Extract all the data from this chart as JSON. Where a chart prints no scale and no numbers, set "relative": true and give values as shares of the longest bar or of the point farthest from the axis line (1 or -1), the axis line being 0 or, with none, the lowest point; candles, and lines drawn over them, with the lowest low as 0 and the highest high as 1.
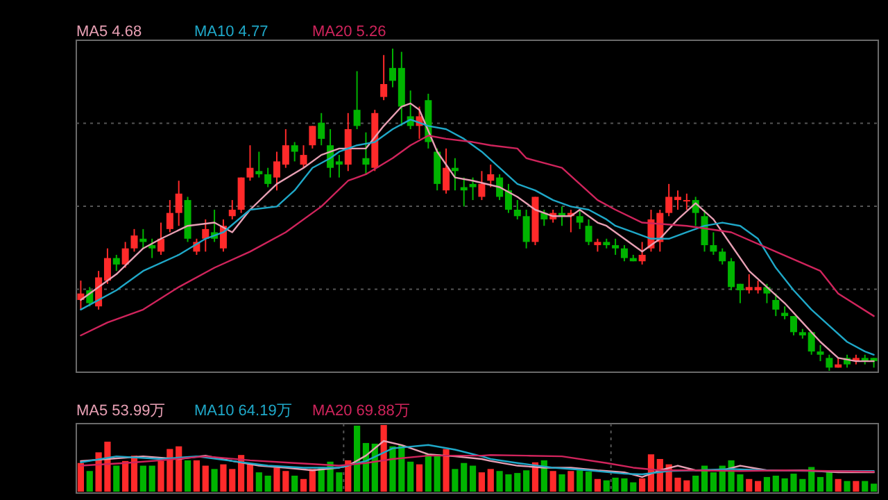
{
  "chart_data": [
    {
      "type": "candlestick",
      "relative": true,
      "grid": "y",
      "legend": "top left",
      "categories": [
        null,
        null,
        null,
        null,
        null,
        null,
        null,
        null,
        null,
        null,
        null,
        null,
        null,
        null,
        null,
        null,
        null,
        null,
        null,
        null,
        null,
        null,
        null,
        null,
        null,
        null,
        null,
        null,
        null,
        null,
        null,
        null,
        null,
        null,
        null,
        null,
        null,
        null,
        null,
        null,
        null,
        null,
        null,
        null,
        null,
        null,
        null,
        null,
        null,
        null,
        null,
        null,
        null,
        null,
        null,
        null,
        null,
        null,
        null,
        null,
        null,
        null,
        null,
        null,
        null,
        null,
        null,
        null,
        null,
        null,
        null,
        null,
        null,
        null,
        null,
        null,
        null,
        null,
        null,
        null,
        null,
        null,
        null,
        null,
        null,
        null,
        null,
        null,
        null,
        null
      ],
      "ohlc": [
        [
          0.22,
          0.28,
          0.19,
          0.24
        ],
        [
          0.25,
          0.26,
          0.2,
          0.21
        ],
        [
          0.2,
          0.31,
          0.19,
          0.29
        ],
        [
          0.28,
          0.38,
          0.27,
          0.35
        ],
        [
          0.35,
          0.36,
          0.31,
          0.33
        ],
        [
          0.33,
          0.4,
          0.32,
          0.38
        ],
        [
          0.38,
          0.44,
          0.37,
          0.42
        ],
        [
          0.41,
          0.44,
          0.38,
          0.4
        ],
        [
          0.39,
          0.41,
          0.35,
          0.38
        ],
        [
          0.37,
          0.46,
          0.36,
          0.41
        ],
        [
          0.44,
          0.53,
          0.43,
          0.49
        ],
        [
          0.49,
          0.59,
          0.45,
          0.55
        ],
        [
          0.53,
          0.54,
          0.4,
          0.41
        ],
        [
          0.37,
          0.41,
          0.36,
          0.4
        ],
        [
          0.41,
          0.47,
          0.37,
          0.44
        ],
        [
          0.43,
          0.5,
          0.4,
          0.41
        ],
        [
          0.38,
          0.47,
          0.37,
          0.45
        ],
        [
          0.48,
          0.53,
          0.47,
          0.5
        ],
        [
          0.5,
          0.6,
          0.49,
          0.6
        ],
        [
          0.6,
          0.7,
          0.59,
          0.63
        ],
        [
          0.62,
          0.68,
          0.6,
          0.61
        ],
        [
          0.61,
          0.63,
          0.57,
          0.58
        ],
        [
          0.6,
          0.68,
          0.56,
          0.65
        ],
        [
          0.64,
          0.75,
          0.63,
          0.7
        ],
        [
          0.7,
          0.71,
          0.65,
          0.68
        ],
        [
          0.64,
          0.7,
          0.63,
          0.67
        ],
        [
          0.7,
          0.76,
          0.69,
          0.76
        ],
        [
          0.77,
          0.8,
          0.7,
          0.72
        ],
        [
          0.7,
          0.75,
          0.6,
          0.63
        ],
        [
          0.65,
          0.67,
          0.6,
          0.64
        ],
        [
          0.64,
          0.8,
          0.62,
          0.75
        ],
        [
          0.81,
          0.93,
          0.75,
          0.76
        ],
        [
          0.66,
          0.74,
          0.61,
          0.64
        ],
        [
          0.63,
          0.81,
          0.62,
          0.8
        ],
        [
          0.85,
          0.98,
          0.84,
          0.89
        ],
        [
          0.94,
          1,
          0.88,
          0.9
        ],
        [
          0.94,
          0.99,
          0.76,
          0.82
        ],
        [
          0.79,
          0.87,
          0.75,
          0.76
        ],
        [
          0.76,
          0.82,
          0.72,
          0.79
        ],
        [
          0.84,
          0.86,
          0.69,
          0.71
        ],
        [
          0.68,
          0.69,
          0.56,
          0.58
        ],
        [
          0.56,
          0.69,
          0.55,
          0.63
        ],
        [
          0.63,
          0.66,
          0.56,
          0.62
        ],
        [
          0.57,
          0.6,
          0.51,
          0.56
        ],
        [
          0.58,
          0.6,
          0.53,
          0.57
        ],
        [
          0.54,
          0.62,
          0.53,
          0.58
        ],
        [
          0.59,
          0.64,
          0.57,
          0.61
        ],
        [
          0.6,
          0.61,
          0.53,
          0.54
        ],
        [
          0.56,
          0.58,
          0.49,
          0.5
        ],
        [
          0.5,
          0.53,
          0.47,
          0.48
        ],
        [
          0.48,
          0.5,
          0.38,
          0.4
        ],
        [
          0.4,
          0.54,
          0.39,
          0.54
        ],
        [
          0.49,
          0.5,
          0.45,
          0.47
        ],
        [
          0.47,
          0.5,
          0.46,
          0.49
        ],
        [
          0.49,
          0.51,
          0.45,
          0.48
        ],
        [
          0.48,
          0.5,
          0.43,
          0.49
        ],
        [
          0.48,
          0.5,
          0.44,
          0.46
        ],
        [
          0.45,
          0.47,
          0.39,
          0.4
        ],
        [
          0.39,
          0.41,
          0.37,
          0.4
        ],
        [
          0.4,
          0.41,
          0.38,
          0.39
        ],
        [
          0.39,
          0.41,
          0.36,
          0.38
        ],
        [
          0.38,
          0.39,
          0.34,
          0.35
        ],
        [
          0.35,
          0.36,
          0.34,
          0.34
        ],
        [
          0.34,
          0.4,
          0.33,
          0.36
        ],
        [
          0.38,
          0.5,
          0.37,
          0.47
        ],
        [
          0.4,
          0.5,
          0.37,
          0.49
        ],
        [
          0.49,
          0.58,
          0.48,
          0.54
        ],
        [
          0.53,
          0.56,
          0.5,
          0.54
        ],
        [
          0.53,
          0.55,
          0.5,
          0.53
        ],
        [
          0.53,
          0.54,
          0.45,
          0.49
        ],
        [
          0.48,
          0.5,
          0.37,
          0.39
        ],
        [
          0.39,
          0.43,
          0.36,
          0.37
        ],
        [
          0.37,
          0.38,
          0.33,
          0.34
        ],
        [
          0.34,
          0.35,
          0.25,
          0.26
        ],
        [
          0.27,
          0.27,
          0.21,
          0.25
        ],
        [
          0.25,
          0.3,
          0.24,
          0.26
        ],
        [
          0.25,
          0.28,
          0.24,
          0.26
        ],
        [
          0.26,
          0.27,
          0.21,
          0.24
        ],
        [
          0.22,
          0.24,
          0.17,
          0.19
        ],
        [
          0.18,
          0.2,
          0.16,
          0.17
        ],
        [
          0.17,
          0.17,
          0.11,
          0.12
        ],
        [
          0.12,
          0.13,
          0.1,
          0.11
        ],
        [
          0.12,
          0.12,
          0.05,
          0.06
        ],
        [
          0.06,
          0.08,
          0.03,
          0.05
        ],
        [
          0.04,
          0.05,
          0,
          0.01
        ],
        [
          0.01,
          0.04,
          0.01,
          0.02
        ],
        [
          0.04,
          0.05,
          0.01,
          0.02
        ],
        [
          0.03,
          0.05,
          0.02,
          0.04
        ],
        [
          0.04,
          0.05,
          0.02,
          0.03
        ],
        [
          0.04,
          0.04,
          0.01,
          0.03
        ]
      ],
      "series": [
        {
          "type": "line",
          "name": "MA5 4.68",
          "color": "#e8a0b4",
          "values": [
            0.22,
            null,
            null,
            null,
            0.3,
            null,
            null,
            0.38,
            null,
            0.41,
            null,
            null,
            0.45,
            null,
            null,
            0.46,
            null,
            0.43,
            null,
            0.5,
            null,
            null,
            0.58,
            null,
            null,
            0.63,
            null,
            0.67,
            null,
            0.69,
            0.69,
            null,
            0.69,
            null,
            0.76,
            null,
            0.82,
            0.83,
            0.81,
            null,
            0.68,
            null,
            0.6,
            null,
            0.59,
            null,
            null,
            0.57,
            null,
            0.54,
            null,
            0.5,
            null,
            0.48,
            null,
            0.48,
            0.5,
            null,
            0.46,
            0.45,
            null,
            0.41,
            null,
            0.37,
            null,
            0.41,
            null,
            0.47,
            null,
            0.52,
            null,
            0.47,
            null,
            0.39,
            null,
            0.31,
            null,
            0.26,
            null,
            0.21,
            null,
            0.15,
            null,
            0.09,
            null,
            0.04,
            null,
            0.03,
            null,
            0.03
          ]
        },
        {
          "type": "line",
          "name": "MA10 4.77",
          "color": "#1fa8c8",
          "values": [
            0.19,
            null,
            null,
            null,
            0.25,
            null,
            null,
            0.31,
            null,
            null,
            null,
            0.36,
            null,
            null,
            0.41,
            null,
            0.43,
            null,
            null,
            0.5,
            null,
            null,
            0.51,
            null,
            0.56,
            null,
            0.63,
            null,
            0.66,
            0.68,
            null,
            0.7,
            null,
            0.71,
            null,
            0.75,
            null,
            0.78,
            null,
            0.76,
            null,
            0.75,
            null,
            0.72,
            null,
            0.68,
            null,
            0.63,
            null,
            0.58,
            null,
            0.56,
            null,
            0.53,
            null,
            0.51,
            null,
            0.5,
            null,
            0.47,
            0.45,
            null,
            0.43,
            null,
            0.41,
            null,
            0.41,
            null,
            0.43,
            null,
            0.45,
            null,
            0.46,
            null,
            0.45,
            null,
            0.41,
            null,
            0.32,
            null,
            0.25,
            null,
            0.19,
            null,
            0.14,
            null,
            0.09,
            null,
            0.06,
            0.05
          ]
        },
        {
          "type": "line",
          "name": "MA20 5.26",
          "color": "#d0245c",
          "values": [
            0.11,
            null,
            null,
            0.15,
            null,
            null,
            null,
            0.19,
            null,
            null,
            null,
            0.26,
            null,
            null,
            null,
            0.32,
            null,
            null,
            null,
            0.37,
            null,
            null,
            null,
            0.43,
            null,
            null,
            null,
            0.51,
            null,
            null,
            0.59,
            null,
            0.61,
            null,
            null,
            0.66,
            null,
            0.7,
            null,
            0.73,
            null,
            0.72,
            null,
            null,
            0.71,
            null,
            0.7,
            null,
            null,
            0.69,
            0.66,
            null,
            null,
            null,
            0.63,
            null,
            0.58,
            null,
            0.53,
            null,
            0.5,
            null,
            null,
            0.46,
            null,
            null,
            null,
            null,
            0.45,
            null,
            null,
            null,
            null,
            0.43,
            null,
            null,
            null,
            null,
            0.37,
            null,
            null,
            null,
            null,
            0.31,
            null,
            0.24,
            null,
            null,
            null,
            0.17
          ]
        }
      ]
    },
    {
      "type": "bar",
      "relative": true,
      "grid": "x",
      "legend": "top left",
      "categories": [
        null,
        null,
        null,
        null,
        null,
        null,
        null,
        null,
        null,
        null,
        null,
        null,
        null,
        null,
        null,
        null,
        null,
        null,
        null,
        null,
        null,
        null,
        null,
        null,
        null,
        null,
        null,
        null,
        null,
        null,
        null,
        null,
        null,
        null,
        null,
        null,
        null,
        null,
        null,
        null,
        null,
        null,
        null,
        null,
        null,
        null,
        null,
        null,
        null,
        null,
        null,
        null,
        null,
        null,
        null,
        null,
        null,
        null,
        null,
        null,
        null,
        null,
        null,
        null,
        null,
        null,
        null,
        null,
        null,
        null,
        null,
        null,
        null,
        null,
        null,
        null,
        null,
        null,
        null,
        null,
        null,
        null,
        null,
        null,
        null,
        null,
        null,
        null,
        null,
        null
      ],
      "series": [
        {
          "type": "bar",
          "values": [
            0.43,
            0.31,
            0.59,
            0.75,
            0.39,
            0.46,
            0.54,
            0.39,
            0.39,
            0.46,
            0.64,
            0.68,
            0.47,
            0.47,
            0.39,
            0.34,
            0.41,
            0.34,
            0.55,
            0.41,
            0.29,
            0.24,
            0.36,
            0.31,
            0.24,
            0.19,
            0.34,
            0.37,
            0.45,
            0.29,
            0.47,
            0.99,
            0.73,
            0.72,
            1,
            0.68,
            0.7,
            0.45,
            0.41,
            0.56,
            0.56,
            0.64,
            0.34,
            0.43,
            0.39,
            0.29,
            0.34,
            0.31,
            0.26,
            0.28,
            0.32,
            0.44,
            0.47,
            0.31,
            0.26,
            0.31,
            0.32,
            0.3,
            0.19,
            0.17,
            0.21,
            0.2,
            0.14,
            0.2,
            0.56,
            0.49,
            0.41,
            0.21,
            0.17,
            0.24,
            0.39,
            0.29,
            0.39,
            0.47,
            0.26,
            0.19,
            0.16,
            0.22,
            0.24,
            0.2,
            0.27,
            0.19,
            0.37,
            0.22,
            0.29,
            0.19,
            0.16,
            0.16,
            0.16,
            0.12
          ],
          "colors": [
            "#ff2a2a",
            "#00b400",
            "#ff2a2a",
            "#ff2a2a",
            "#00b400",
            "#ff2a2a",
            "#ff2a2a",
            "#00b400",
            "#00b400",
            "#ff2a2a",
            "#ff2a2a",
            "#ff2a2a",
            "#00b400",
            "#ff2a2a",
            "#ff2a2a",
            "#00b400",
            "#ff2a2a",
            "#ff2a2a",
            "#ff2a2a",
            "#ff2a2a",
            "#00b400",
            "#00b400",
            "#ff2a2a",
            "#ff2a2a",
            "#00b400",
            "#ff2a2a",
            "#ff2a2a",
            "#00b400",
            "#00b400",
            "#00b400",
            "#ff2a2a",
            "#00b400",
            "#00b400",
            "#00b400",
            "#ff2a2a",
            "#00b400",
            "#00b400",
            "#00b400",
            "#ff2a2a",
            "#00b400",
            "#00b400",
            "#ff2a2a",
            "#00b400",
            "#00b400",
            "#00b400",
            "#ff2a2a",
            "#ff2a2a",
            "#00b400",
            "#00b400",
            "#00b400",
            "#00b400",
            "#ff2a2a",
            "#00b400",
            "#ff2a2a",
            "#00b400",
            "#ff2a2a",
            "#00b400",
            "#00b400",
            "#ff2a2a",
            "#00b400",
            "#00b400",
            "#00b400",
            "#00b400",
            "#ff2a2a",
            "#ff2a2a",
            "#ff2a2a",
            "#ff2a2a",
            "#ff2a2a",
            "#ff2a2a",
            "#00b400",
            "#00b400",
            "#00b400",
            "#00b400",
            "#00b400",
            "#00b400",
            "#ff2a2a",
            "#ff2a2a",
            "#00b400",
            "#00b400",
            "#00b400",
            "#00b400",
            "#00b400",
            "#00b400",
            "#00b400",
            "#00b400",
            "#ff2a2a",
            "#00b400",
            "#ff2a2a",
            "#00b400",
            "#00b400"
          ]
        },
        {
          "type": "line",
          "name": "MA5 53.99万",
          "color": "#e8a0b4",
          "values": [
            0.46,
            null,
            null,
            0.49,
            null,
            null,
            null,
            0.53,
            null,
            null,
            null,
            0.49,
            null,
            null,
            0.54,
            null,
            null,
            0.46,
            null,
            null,
            0.39,
            null,
            null,
            0.36,
            null,
            null,
            0.32,
            null,
            null,
            0.36,
            0.39,
            null,
            0.54,
            null,
            0.76,
            null,
            0.7,
            null,
            null,
            0.56,
            null,
            null,
            0.53,
            null,
            null,
            0.49,
            0.46,
            null,
            null,
            0.39,
            null,
            null,
            0.36,
            null,
            null,
            0.36,
            null,
            null,
            0.32,
            null,
            null,
            0.29,
            null,
            0.22,
            null,
            0.32,
            null,
            0.39,
            null,
            0.32,
            null,
            null,
            0.32,
            null,
            0.39,
            null,
            null,
            0.32,
            null,
            null,
            null,
            0.32,
            null,
            null,
            null,
            0.29,
            null,
            null,
            null,
            0.29
          ]
        },
        {
          "type": "line",
          "name": "MA10 64.19万",
          "color": "#1fa8c8",
          "values": [
            0.44,
            null,
            null,
            null,
            0.53,
            null,
            null,
            null,
            null,
            0.49,
            null,
            null,
            null,
            0.53,
            null,
            null,
            null,
            0.46,
            null,
            null,
            null,
            0.39,
            null,
            null,
            null,
            0.36,
            null,
            null,
            null,
            0.36,
            null,
            null,
            0.46,
            null,
            null,
            0.65,
            null,
            null,
            null,
            0.7,
            null,
            null,
            0.63,
            null,
            null,
            0.53,
            0.49,
            null,
            null,
            0.43,
            null,
            null,
            null,
            0.36,
            null,
            null,
            null,
            0.32,
            null,
            null,
            null,
            0.27,
            null,
            0.26,
            null,
            null,
            0.31,
            null,
            null,
            0.32,
            null,
            null,
            null,
            0.34,
            null,
            null,
            null,
            0.32,
            null,
            null,
            null,
            null,
            null,
            0.31,
            null,
            null,
            null,
            null,
            null,
            0.31
          ]
        },
        {
          "type": "line",
          "name": "MA20 69.88万",
          "color": "#d0245c",
          "values": [
            0.39,
            null,
            null,
            null,
            null,
            0.43,
            null,
            null,
            null,
            0.47,
            null,
            null,
            null,
            null,
            0.53,
            null,
            null,
            null,
            null,
            0.47,
            null,
            null,
            null,
            null,
            0.43,
            null,
            null,
            null,
            null,
            0.39,
            null,
            null,
            0.43,
            null,
            null,
            0.49,
            null,
            null,
            null,
            0.54,
            null,
            null,
            null,
            0.54,
            null,
            0.54,
            0.55,
            null,
            null,
            null,
            0.54,
            null,
            null,
            null,
            0.53,
            null,
            null,
            null,
            null,
            0.43,
            null,
            null,
            0.36,
            null,
            null,
            0.32,
            null,
            null,
            null,
            0.32,
            null,
            null,
            null,
            null,
            0.31,
            null,
            null,
            null,
            null,
            0.32,
            null,
            null,
            null,
            null,
            0.31,
            null,
            null,
            null,
            null,
            0.3
          ]
        }
      ]
    }
  ]
}
